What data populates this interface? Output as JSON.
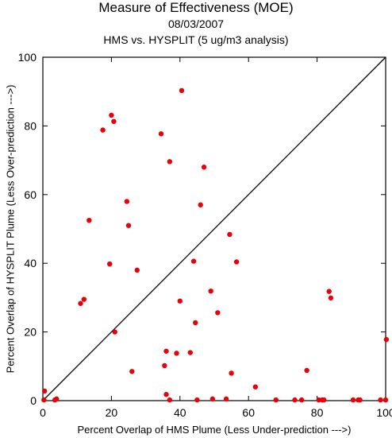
{
  "chart_data": {
    "type": "scatter",
    "title": "Measure of Effectiveness (MOE)",
    "subtitle": "08/03/2007",
    "subtitle2": "HMS vs. HYSPLIT  (5 ug/m3 analysis)",
    "xlabel": "Percent Overlap of HMS Plume (Less Under-prediction --->)",
    "ylabel": "Percent Overlap of HYSPLIT Plume (Less Over-prediction --->)",
    "xlim": [
      0,
      100
    ],
    "ylim": [
      0,
      100
    ],
    "xticks": [
      "0",
      "20",
      "40",
      "60",
      "80",
      "100"
    ],
    "yticks": [
      "0",
      "20",
      "40",
      "60",
      "80",
      "100"
    ],
    "grid": false,
    "reference_line": "1:1 diagonal",
    "marker_color": "#e8000b",
    "points": [
      {
        "x": 0.5,
        "y": 2.8
      },
      {
        "x": 0.3,
        "y": 0.2
      },
      {
        "x": 3.5,
        "y": 0.2
      },
      {
        "x": 4,
        "y": 0.5
      },
      {
        "x": 11,
        "y": 28.3
      },
      {
        "x": 12,
        "y": 29.5
      },
      {
        "x": 13.5,
        "y": 52.5
      },
      {
        "x": 17.5,
        "y": 78.8
      },
      {
        "x": 19.5,
        "y": 39.8
      },
      {
        "x": 20,
        "y": 83.1
      },
      {
        "x": 20.7,
        "y": 81.3
      },
      {
        "x": 21,
        "y": 20
      },
      {
        "x": 24.5,
        "y": 58
      },
      {
        "x": 25,
        "y": 51
      },
      {
        "x": 26,
        "y": 8.5
      },
      {
        "x": 27.5,
        "y": 38
      },
      {
        "x": 34.5,
        "y": 77.7
      },
      {
        "x": 35.5,
        "y": 10.2
      },
      {
        "x": 36,
        "y": 14.4
      },
      {
        "x": 36,
        "y": 1.8
      },
      {
        "x": 37,
        "y": 69.6
      },
      {
        "x": 37,
        "y": 0.2
      },
      {
        "x": 39,
        "y": 13.8
      },
      {
        "x": 40,
        "y": 29
      },
      {
        "x": 40.5,
        "y": 90.3
      },
      {
        "x": 43,
        "y": 14
      },
      {
        "x": 44,
        "y": 40.6
      },
      {
        "x": 44.5,
        "y": 22.7
      },
      {
        "x": 45,
        "y": 0.2
      },
      {
        "x": 46,
        "y": 57
      },
      {
        "x": 47,
        "y": 68
      },
      {
        "x": 49,
        "y": 31.9
      },
      {
        "x": 49.5,
        "y": 0.5
      },
      {
        "x": 51,
        "y": 25.6
      },
      {
        "x": 53.5,
        "y": 0.5
      },
      {
        "x": 54.5,
        "y": 48.4
      },
      {
        "x": 55,
        "y": 8
      },
      {
        "x": 56.5,
        "y": 40.4
      },
      {
        "x": 62,
        "y": 4
      },
      {
        "x": 68,
        "y": 0.2
      },
      {
        "x": 73.5,
        "y": 0.2
      },
      {
        "x": 75.5,
        "y": 0.2
      },
      {
        "x": 77,
        "y": 8.8
      },
      {
        "x": 80.5,
        "y": 0.2
      },
      {
        "x": 81.5,
        "y": 0.2
      },
      {
        "x": 82,
        "y": 0.2
      },
      {
        "x": 83.5,
        "y": 31.8
      },
      {
        "x": 84,
        "y": 29.9
      },
      {
        "x": 90.5,
        "y": 0.2
      },
      {
        "x": 92,
        "y": 0.2
      },
      {
        "x": 92.5,
        "y": 0.2
      },
      {
        "x": 98.5,
        "y": 0.2
      },
      {
        "x": 100,
        "y": 0.2
      },
      {
        "x": 100.2,
        "y": 17.8
      }
    ]
  }
}
